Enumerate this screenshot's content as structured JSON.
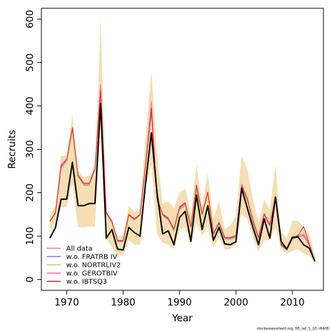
{
  "chart_data": {
    "type": "line",
    "xlabel": "Year",
    "ylabel": "Recruits",
    "xlim": [
      1965.5,
      2015.5
    ],
    "ylim": [
      -25,
      625
    ],
    "x_ticks": [
      1970,
      1980,
      1990,
      2000,
      2010
    ],
    "y_ticks": [
      0,
      100,
      200,
      300,
      400,
      500,
      600
    ],
    "legend_position": "bottom-left",
    "caption": "stockassessment.org, NS_sel_1_10, r6408",
    "x": [
      1967,
      1968,
      1969,
      1970,
      1971,
      1972,
      1973,
      1974,
      1975,
      1976,
      1977,
      1978,
      1979,
      1980,
      1981,
      1982,
      1983,
      1984,
      1985,
      1986,
      1987,
      1988,
      1989,
      1990,
      1991,
      1992,
      1993,
      1994,
      1995,
      1996,
      1997,
      1998,
      1999,
      2000,
      2001,
      2002,
      2003,
      2004,
      2005,
      2006,
      2007,
      2008,
      2009,
      2010,
      2011,
      2012,
      2013,
      2014
    ],
    "band": {
      "color": "#f5deb3",
      "lower": [
        108,
        130,
        165,
        168,
        220,
        120,
        120,
        122,
        122,
        362,
        95,
        75,
        55,
        55,
        90,
        80,
        80,
        215,
        265,
        105,
        85,
        80,
        70,
        115,
        120,
        78,
        130,
        100,
        120,
        75,
        95,
        70,
        70,
        80,
        150,
        140,
        95,
        65,
        90,
        90,
        120,
        70,
        60,
        65,
        70,
        60,
        55,
        35
      ],
      "upper": [
        150,
        170,
        285,
        285,
        380,
        250,
        235,
        240,
        240,
        600,
        160,
        130,
        100,
        100,
        170,
        155,
        165,
        330,
        480,
        290,
        175,
        180,
        165,
        200,
        210,
        150,
        265,
        170,
        245,
        140,
        180,
        115,
        125,
        145,
        285,
        255,
        185,
        130,
        185,
        160,
        265,
        110,
        95,
        135,
        135,
        120,
        105,
        55
      ]
    },
    "series": [
      {
        "name": "All data",
        "color": "#f08080",
        "values": [
          135,
          155,
          260,
          275,
          345,
          240,
          220,
          220,
          255,
          425,
          155,
          135,
          90,
          90,
          150,
          140,
          150,
          265,
          390,
          185,
          150,
          140,
          115,
          165,
          175,
          120,
          215,
          150,
          200,
          105,
          130,
          95,
          95,
          100,
          215,
          185,
          135,
          95,
          150,
          125,
          185,
          80,
          70,
          95,
          100,
          100,
          80,
          40
        ]
      },
      {
        "name": "w.o. FRATRB IV",
        "color": "#9b72cf",
        "values": [
          133,
          152,
          258,
          272,
          342,
          238,
          218,
          218,
          252,
          420,
          152,
          132,
          88,
          88,
          148,
          138,
          148,
          262,
          385,
          182,
          148,
          138,
          112,
          162,
          172,
          118,
          212,
          148,
          198,
          103,
          128,
          93,
          93,
          98,
          212,
          182,
          132,
          92,
          148,
          123,
          190,
          78,
          68,
          93,
          98,
          102,
          78,
          40
        ]
      },
      {
        "name": "w.o. NORTRLIV2",
        "color": "#b6d96a",
        "values": [
          132,
          150,
          262,
          272,
          340,
          236,
          216,
          216,
          250,
          428,
          150,
          130,
          86,
          86,
          146,
          136,
          146,
          260,
          400,
          180,
          146,
          136,
          110,
          160,
          170,
          116,
          205,
          146,
          195,
          101,
          126,
          92,
          92,
          96,
          218,
          180,
          130,
          90,
          146,
          140,
          198,
          82,
          72,
          100,
          115,
          108,
          82,
          40
        ]
      },
      {
        "name": "w.o. GEROTBIV",
        "color": "#ff69b4",
        "values": [
          134,
          154,
          265,
          278,
          348,
          242,
          222,
          222,
          258,
          450,
          154,
          134,
          90,
          90,
          150,
          140,
          150,
          268,
          410,
          188,
          152,
          142,
          117,
          168,
          178,
          122,
          218,
          152,
          202,
          107,
          132,
          97,
          97,
          102,
          220,
          188,
          138,
          97,
          152,
          127,
          188,
          82,
          72,
          97,
          102,
          104,
          82,
          42
        ]
      },
      {
        "name": "w.o. IBTSQ3",
        "color": "#e8202a",
        "values": [
          134,
          154,
          262,
          276,
          350,
          240,
          222,
          222,
          256,
          435,
          154,
          134,
          89,
          89,
          150,
          140,
          150,
          267,
          395,
          186,
          150,
          140,
          116,
          166,
          176,
          121,
          217,
          151,
          201,
          106,
          131,
          96,
          96,
          101,
          216,
          186,
          136,
          96,
          151,
          126,
          186,
          81,
          71,
          96,
          101,
          122,
          81,
          41
        ]
      },
      {
        "name": "",
        "color": "#000000",
        "values": [
          95,
          120,
          185,
          185,
          270,
          170,
          170,
          175,
          175,
          405,
          95,
          115,
          70,
          68,
          120,
          108,
          100,
          225,
          338,
          200,
          105,
          112,
          80,
          143,
          157,
          88,
          195,
          115,
          170,
          90,
          120,
          82,
          80,
          87,
          210,
          165,
          120,
          80,
          140,
          95,
          190,
          88,
          70,
          97,
          98,
          80,
          72,
          42
        ]
      }
    ]
  }
}
